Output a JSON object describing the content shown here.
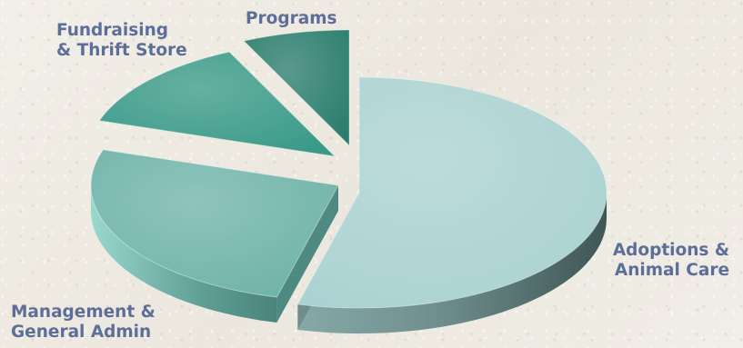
{
  "chart_data": {
    "type": "pie",
    "style": "3d-exploded",
    "title": "",
    "slices": [
      {
        "name": "Adoptions & Animal Care",
        "label_lines": [
          "Adoptions &",
          "Animal Care"
        ],
        "value": 54,
        "color": "#aad2d1"
      },
      {
        "name": "Management & General Admin",
        "label_lines": [
          "Management &",
          "General Admin"
        ],
        "value": 26,
        "color": "#6fb3a9"
      },
      {
        "name": "Fundraising & Thrift Store",
        "label_lines": [
          "Fundraising",
          "& Thrift Store"
        ],
        "value": 13,
        "color": "#3a9a88"
      },
      {
        "name": "Programs",
        "label_lines": [
          "Programs"
        ],
        "value": 7,
        "color": "#2b7d6d"
      }
    ],
    "label_color": "#5d6e98",
    "legend": "none"
  }
}
